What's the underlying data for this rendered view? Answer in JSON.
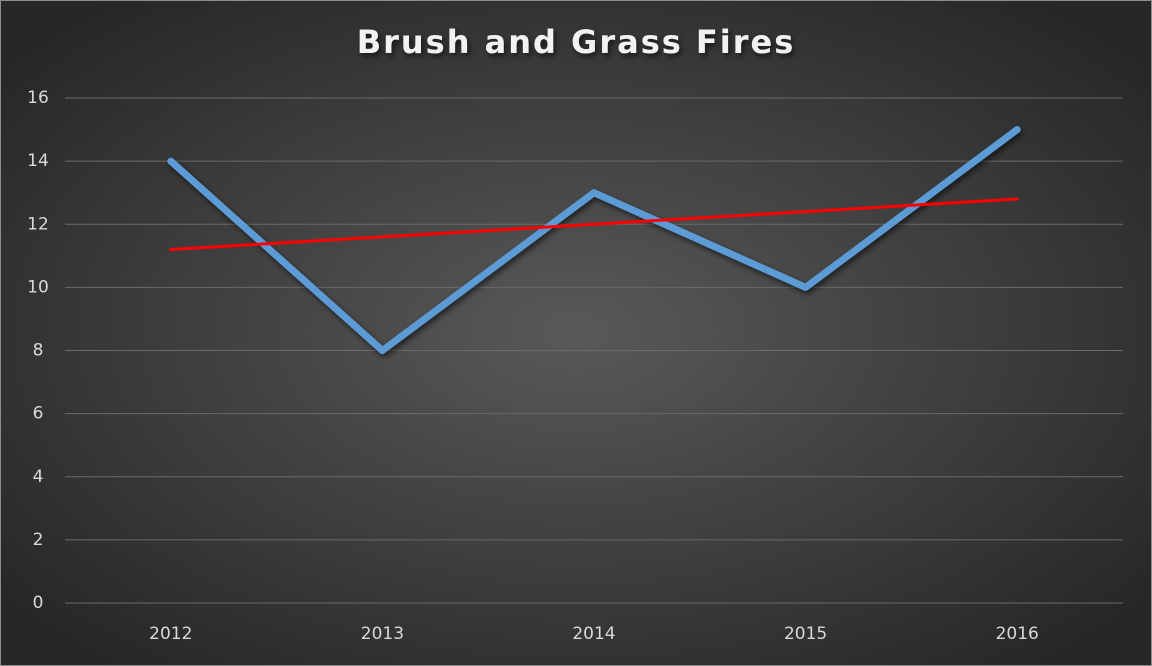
{
  "chart_data": {
    "type": "line",
    "title": "Brush and Grass Fires",
    "categories": [
      "2012",
      "2013",
      "2014",
      "2015",
      "2016"
    ],
    "series": [
      {
        "color": "#5b9bd5",
        "values": [
          14,
          8,
          13,
          10,
          15
        ]
      },
      {
        "color": "#ff0000",
        "values": [
          11.2,
          11.6,
          12,
          12.4,
          12.8
        ]
      }
    ],
    "ylim": [
      0,
      16
    ],
    "yticks": [
      0,
      2,
      4,
      6,
      8,
      10,
      12,
      14,
      16
    ],
    "grid": true
  }
}
